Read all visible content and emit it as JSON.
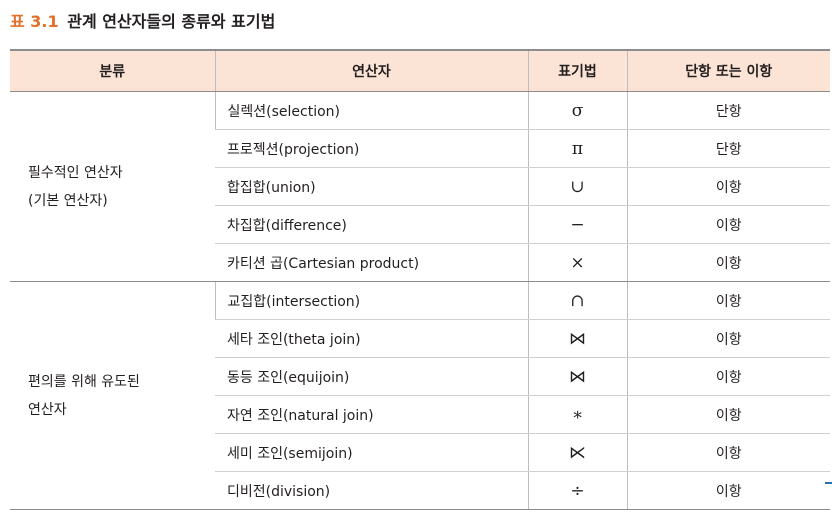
{
  "caption": {
    "label": "표 3.1",
    "title": "관계 연산자들의 종류와 표기법"
  },
  "headers": [
    "분류",
    "연산자",
    "표기법",
    "단항 또는 이항"
  ],
  "groups": [
    {
      "category_lines": [
        "필수적인 연산자",
        "(기본 연산자)"
      ],
      "rows": [
        {
          "name": "실렉션(selection)",
          "symbol": "σ",
          "symbol_name": "sigma-icon",
          "arity": "단항"
        },
        {
          "name": "프로젝션(projection)",
          "symbol": "π",
          "symbol_name": "pi-icon",
          "arity": "단항"
        },
        {
          "name": "합집합(union)",
          "symbol": "∪",
          "symbol_name": "union-icon",
          "arity": "이항"
        },
        {
          "name": "차집합(difference)",
          "symbol": "−",
          "symbol_name": "minus-icon",
          "arity": "이항"
        },
        {
          "name": "카티션 곱(Cartesian product)",
          "symbol": "×",
          "symbol_name": "times-icon",
          "arity": "이항"
        }
      ]
    },
    {
      "category_lines": [
        "편의를 위해 유도된",
        "연산자"
      ],
      "rows": [
        {
          "name": "교집합(intersection)",
          "symbol": "∩",
          "symbol_name": "intersection-icon",
          "arity": "이항"
        },
        {
          "name": "세타 조인(theta join)",
          "symbol": "⋈",
          "symbol_name": "bowtie-icon",
          "arity": "이항"
        },
        {
          "name": "동등 조인(equijoin)",
          "symbol": "⋈",
          "symbol_name": "bowtie-icon",
          "arity": "이항"
        },
        {
          "name": "자연 조인(natural join)",
          "symbol": "∗",
          "symbol_name": "asterisk-icon",
          "arity": "이항"
        },
        {
          "name": "세미 조인(semijoin)",
          "symbol": "⋉",
          "symbol_name": "semijoin-icon",
          "arity": "이항"
        },
        {
          "name": "디비전(division)",
          "symbol": "÷",
          "symbol_name": "divide-icon",
          "arity": "이항"
        }
      ]
    }
  ],
  "colors": {
    "caption_label": "#e0702a",
    "header_background": "#fbe4d6"
  }
}
